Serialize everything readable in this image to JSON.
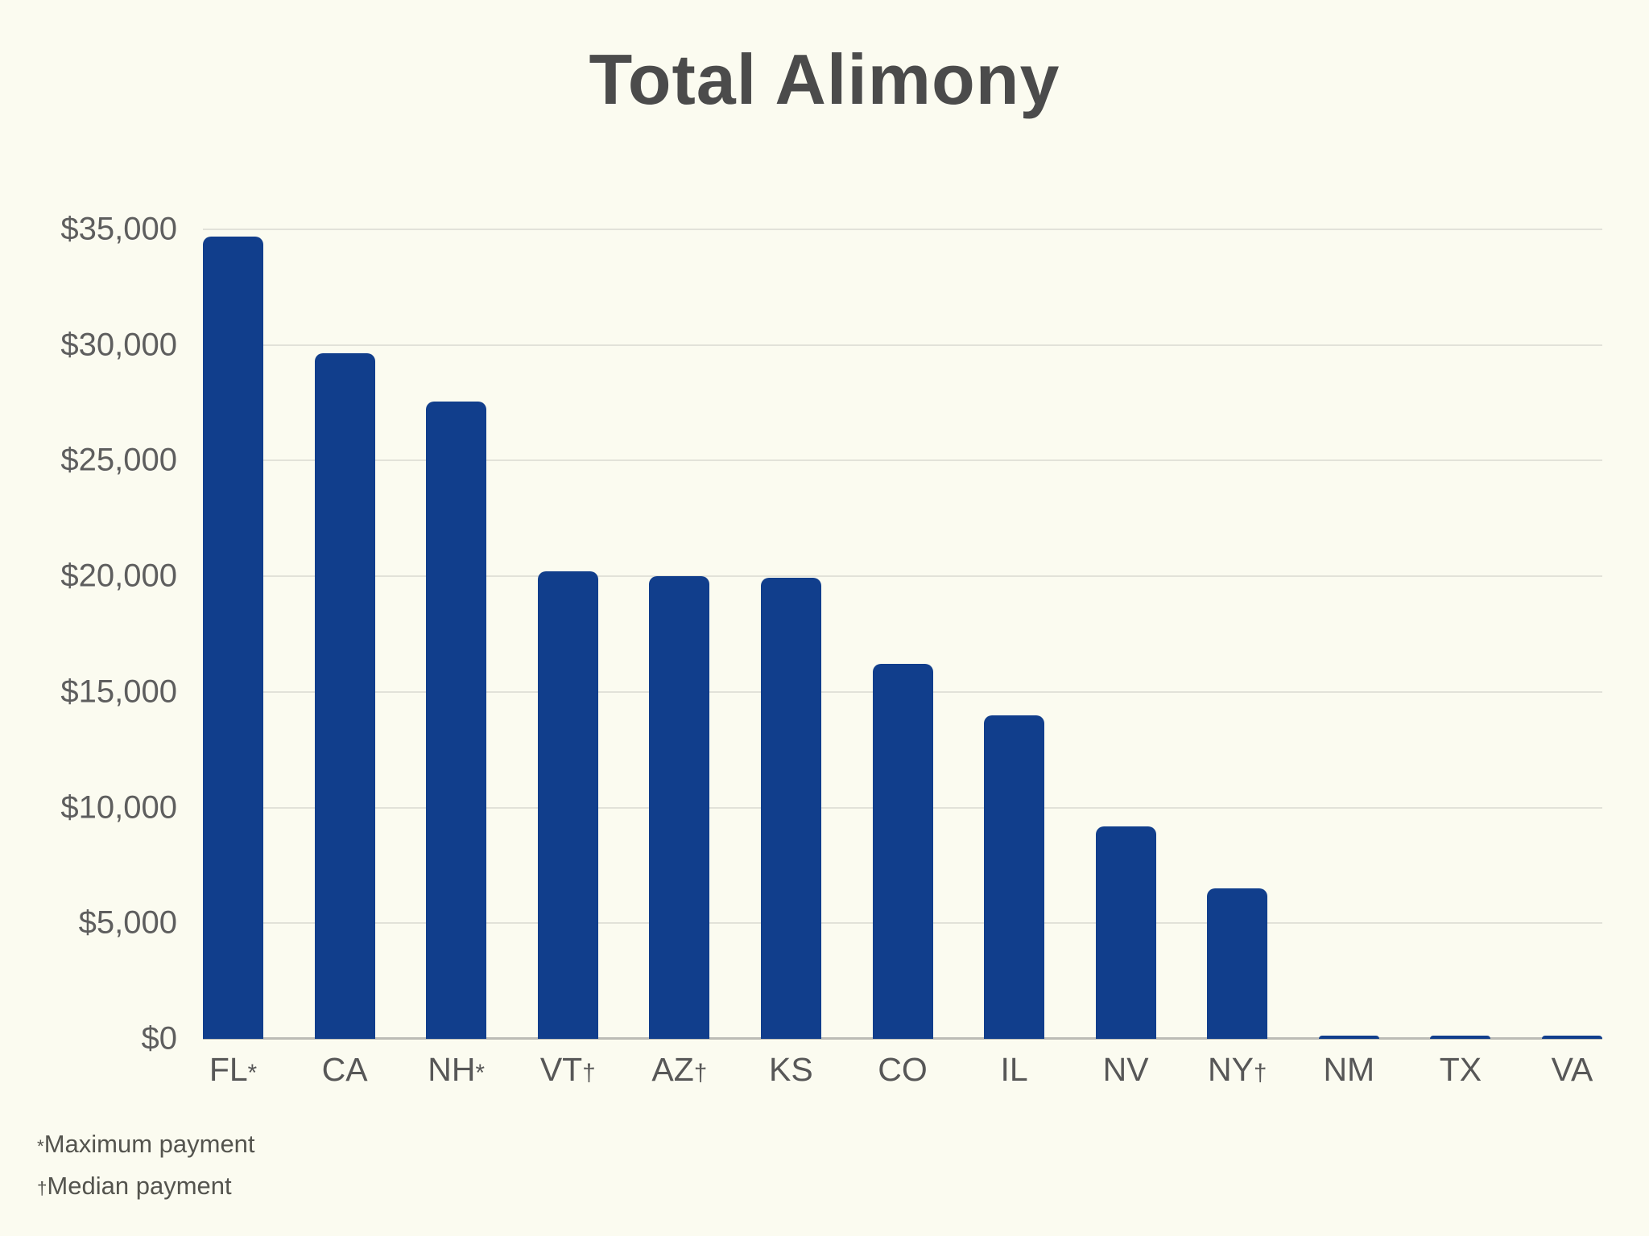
{
  "chart_data": {
    "type": "bar",
    "title": "Total Alimony",
    "categories": [
      "FL",
      "CA",
      "NH",
      "VT",
      "AZ",
      "KS",
      "CO",
      "IL",
      "NV",
      "NY",
      "NM",
      "TX",
      "VA"
    ],
    "category_markers": [
      "*",
      "",
      "*",
      "†",
      "†",
      "",
      "",
      "",
      "",
      "†",
      "",
      "",
      ""
    ],
    "values": [
      34700,
      29650,
      27550,
      20200,
      20000,
      19950,
      16200,
      14000,
      9200,
      6500,
      100,
      100,
      100
    ],
    "xlabel": "",
    "ylabel": "",
    "ylim": [
      0,
      35000
    ],
    "ytick_step": 5000,
    "yticks": [
      {
        "value": 0,
        "label": "$0"
      },
      {
        "value": 5000,
        "label": "$5,000"
      },
      {
        "value": 10000,
        "label": "$10,000"
      },
      {
        "value": 15000,
        "label": "$15,000"
      },
      {
        "value": 20000,
        "label": "$20,000"
      },
      {
        "value": 25000,
        "label": "$25,000"
      },
      {
        "value": 30000,
        "label": "$30,000"
      },
      {
        "value": 35000,
        "label": "$35,000"
      }
    ],
    "grid": "horizontal",
    "legend": "none",
    "footnotes": [
      {
        "marker": "*",
        "text": "Maximum payment"
      },
      {
        "marker": "†",
        "text": "Median payment"
      }
    ],
    "colors": {
      "bar": "#113e8c",
      "background": "#fbfbf0",
      "gridline": "#e2e2d9",
      "baseline": "#bcbcb6",
      "title_text": "#4b4b4b",
      "axis_text": "#5e5e5e"
    }
  }
}
